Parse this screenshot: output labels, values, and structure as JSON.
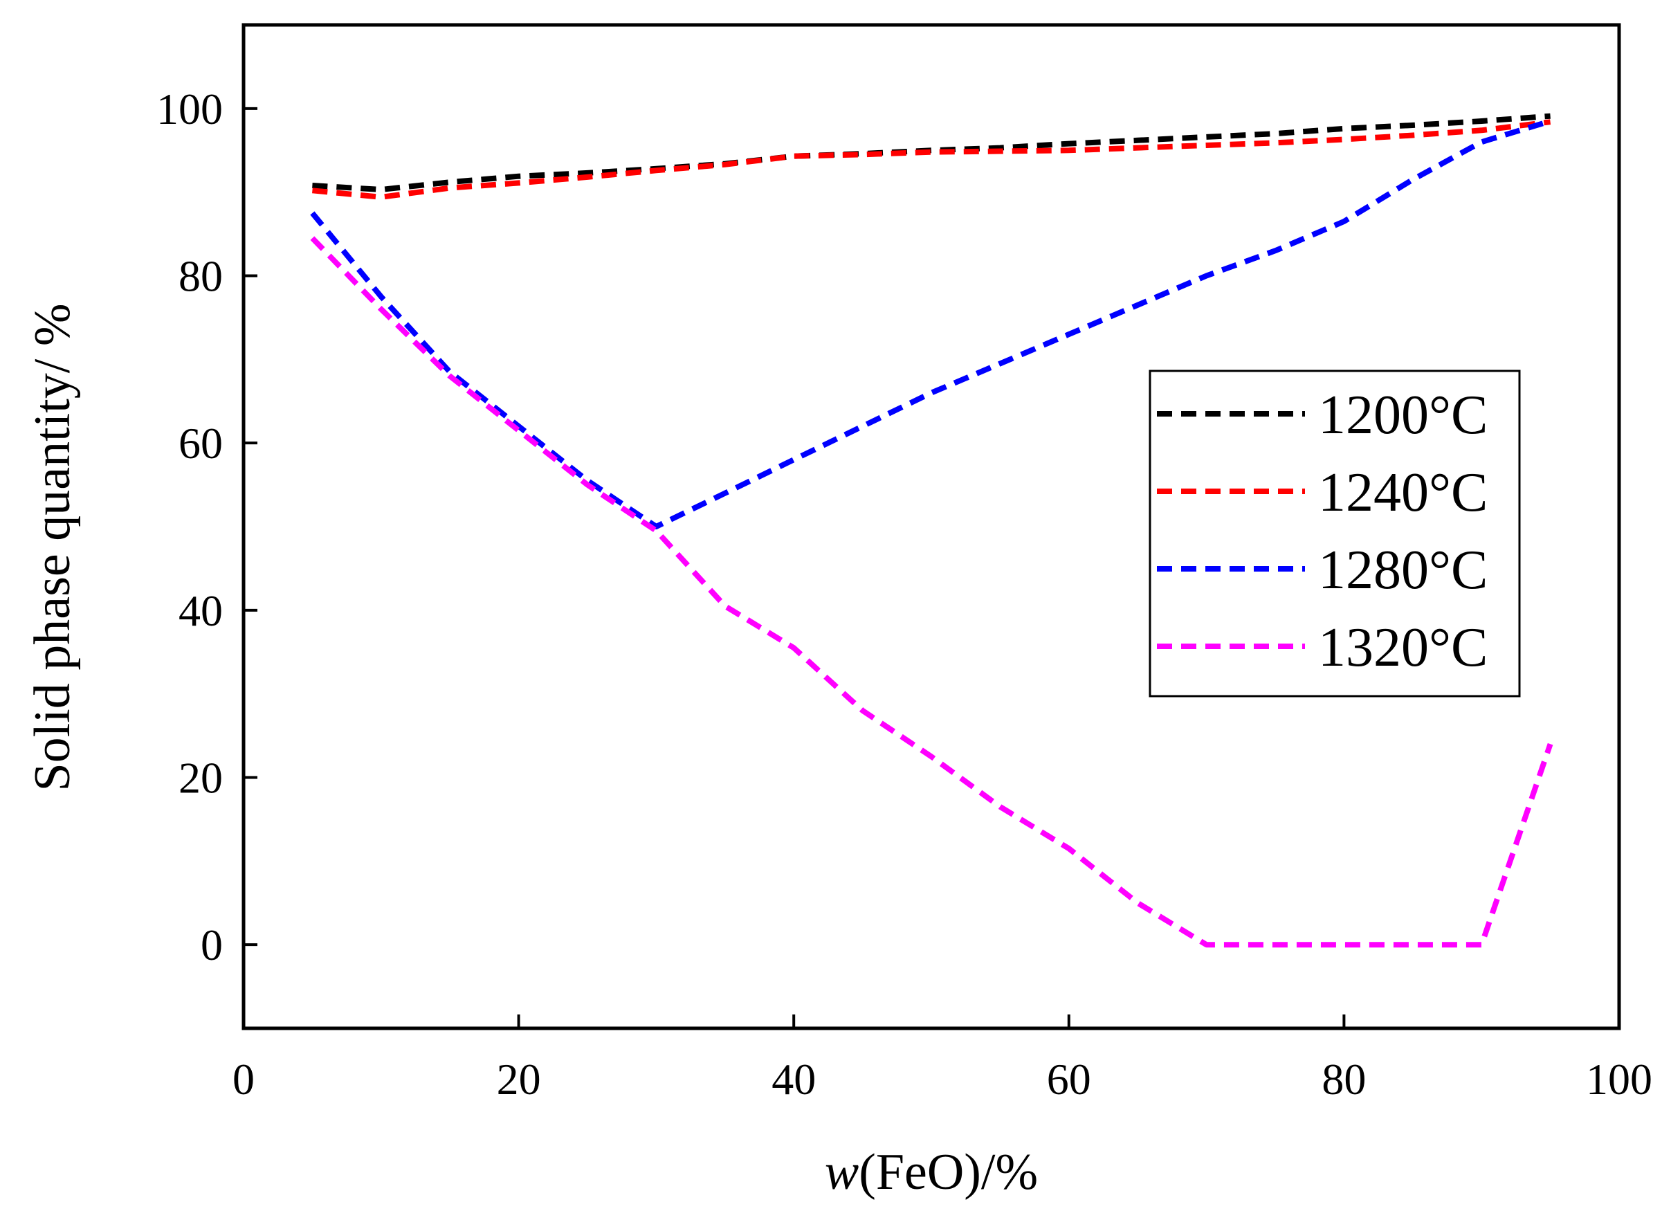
{
  "chart_data": {
    "type": "line",
    "title": "",
    "xlabel_italic": "w",
    "xlabel_rest": "(FeO)/%",
    "ylabel": "Solid phase quantity/ %",
    "xlim": [
      0,
      100
    ],
    "ylim": [
      -10,
      110
    ],
    "xticks": [
      0,
      20,
      40,
      60,
      80,
      100
    ],
    "yticks": [
      0,
      20,
      40,
      60,
      80,
      100
    ],
    "xtick_labels": [
      "0",
      "20",
      "40",
      "60",
      "80",
      "100"
    ],
    "ytick_labels": [
      "0",
      "20",
      "40",
      "60",
      "80",
      "100"
    ],
    "grid": false,
    "legend_position": "right",
    "x": [
      5,
      10,
      15,
      20,
      25,
      30,
      35,
      40,
      45,
      50,
      55,
      60,
      65,
      70,
      75,
      80,
      85,
      90,
      95
    ],
    "series": [
      {
        "name": "1200°C",
        "color": "#000000",
        "values": [
          90.8,
          90.3,
          91.2,
          91.9,
          92.3,
          92.8,
          93.4,
          94.3,
          94.6,
          95.0,
          95.3,
          95.8,
          96.2,
          96.6,
          97.0,
          97.6,
          98.0,
          98.5,
          99.1
        ]
      },
      {
        "name": "1240°C",
        "color": "#ff0000",
        "values": [
          90.2,
          89.4,
          90.5,
          91.1,
          91.8,
          92.6,
          93.3,
          94.3,
          94.5,
          94.8,
          94.9,
          95.0,
          95.3,
          95.6,
          95.9,
          96.3,
          96.8,
          97.4,
          98.4
        ]
      },
      {
        "name": "1280°C",
        "color": "#0000ff",
        "values": [
          87.5,
          77.5,
          68.5,
          62.0,
          55.5,
          50.0,
          54.0,
          58.0,
          62.0,
          66.0,
          69.5,
          73.0,
          76.5,
          80.0,
          83.0,
          86.5,
          91.5,
          96.0,
          98.5
        ]
      },
      {
        "name": "1320°C",
        "color": "#ff00ff",
        "values": [
          84.5,
          76.0,
          68.0,
          61.5,
          55.0,
          49.5,
          40.5,
          35.5,
          28.0,
          22.5,
          16.5,
          11.5,
          5.0,
          0.0,
          0.0,
          0.0,
          0.0,
          0.0,
          24.0
        ]
      }
    ]
  }
}
